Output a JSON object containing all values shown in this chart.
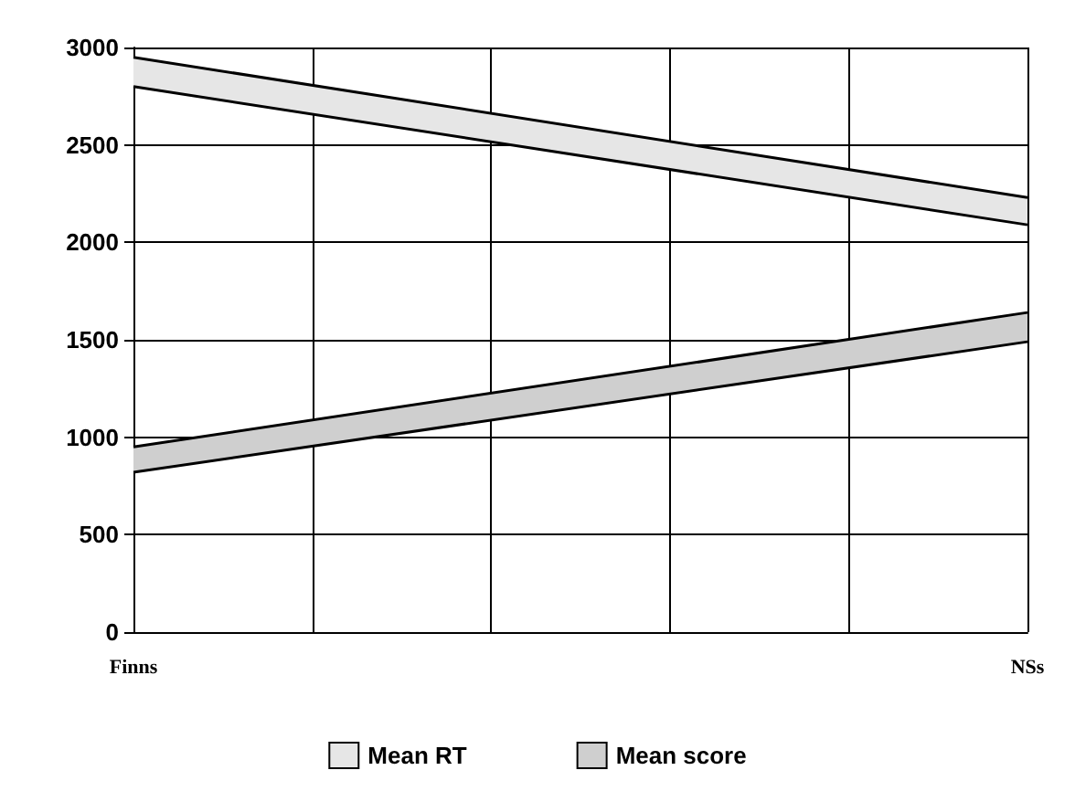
{
  "chart_data": {
    "type": "area",
    "categories": [
      "Finns",
      null,
      null,
      null,
      null,
      "NSs"
    ],
    "ylim": [
      0,
      3000
    ],
    "yticks": [
      0,
      500,
      1000,
      1500,
      2000,
      2500,
      3000
    ],
    "grid": true,
    "legend": "bottom",
    "series": [
      {
        "name": "Mean RT",
        "color": "#e6e6e6",
        "values": [
          2950,
          null,
          null,
          null,
          null,
          2230
        ]
      },
      {
        "type": "line",
        "color": "#000000",
        "values": [
          2800,
          null,
          null,
          null,
          null,
          2090
        ]
      },
      {
        "name": "Mean score",
        "color": "#cfcfcf",
        "values": [
          950,
          null,
          null,
          null,
          null,
          1640
        ]
      },
      {
        "type": "line",
        "color": "#000000",
        "values": [
          820,
          null,
          null,
          null,
          null,
          1490
        ]
      }
    ]
  }
}
